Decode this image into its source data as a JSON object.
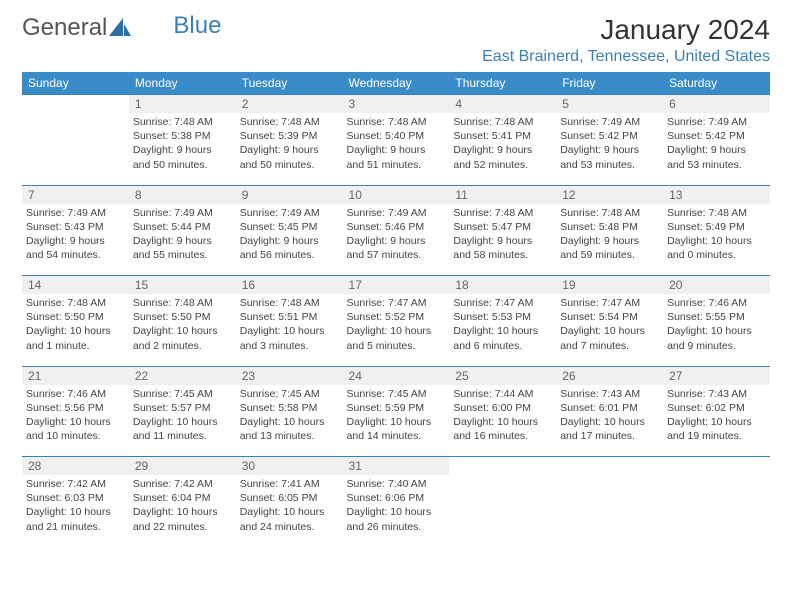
{
  "logo": {
    "text_a": "General",
    "text_b": "Blue"
  },
  "title": "January 2024",
  "location": "East Brainerd, Tennessee, United States",
  "colors": {
    "header_bg": "#3a8cc9",
    "header_text": "#ffffff",
    "rule": "#3a7fb6",
    "daynum_bg": "#eef0f1",
    "daynum_text": "#666666",
    "body_text": "#444444",
    "accent": "#3a7fb6"
  },
  "weekdays": [
    "Sunday",
    "Monday",
    "Tuesday",
    "Wednesday",
    "Thursday",
    "Friday",
    "Saturday"
  ],
  "weeks": [
    {
      "nums": [
        "",
        "1",
        "2",
        "3",
        "4",
        "5",
        "6"
      ],
      "cells": [
        "",
        "Sunrise: 7:48 AM\nSunset: 5:38 PM\nDaylight: 9 hours and 50 minutes.",
        "Sunrise: 7:48 AM\nSunset: 5:39 PM\nDaylight: 9 hours and 50 minutes.",
        "Sunrise: 7:48 AM\nSunset: 5:40 PM\nDaylight: 9 hours and 51 minutes.",
        "Sunrise: 7:48 AM\nSunset: 5:41 PM\nDaylight: 9 hours and 52 minutes.",
        "Sunrise: 7:49 AM\nSunset: 5:42 PM\nDaylight: 9 hours and 53 minutes.",
        "Sunrise: 7:49 AM\nSunset: 5:42 PM\nDaylight: 9 hours and 53 minutes."
      ]
    },
    {
      "nums": [
        "7",
        "8",
        "9",
        "10",
        "11",
        "12",
        "13"
      ],
      "cells": [
        "Sunrise: 7:49 AM\nSunset: 5:43 PM\nDaylight: 9 hours and 54 minutes.",
        "Sunrise: 7:49 AM\nSunset: 5:44 PM\nDaylight: 9 hours and 55 minutes.",
        "Sunrise: 7:49 AM\nSunset: 5:45 PM\nDaylight: 9 hours and 56 minutes.",
        "Sunrise: 7:49 AM\nSunset: 5:46 PM\nDaylight: 9 hours and 57 minutes.",
        "Sunrise: 7:48 AM\nSunset: 5:47 PM\nDaylight: 9 hours and 58 minutes.",
        "Sunrise: 7:48 AM\nSunset: 5:48 PM\nDaylight: 9 hours and 59 minutes.",
        "Sunrise: 7:48 AM\nSunset: 5:49 PM\nDaylight: 10 hours and 0 minutes."
      ]
    },
    {
      "nums": [
        "14",
        "15",
        "16",
        "17",
        "18",
        "19",
        "20"
      ],
      "cells": [
        "Sunrise: 7:48 AM\nSunset: 5:50 PM\nDaylight: 10 hours and 1 minute.",
        "Sunrise: 7:48 AM\nSunset: 5:50 PM\nDaylight: 10 hours and 2 minutes.",
        "Sunrise: 7:48 AM\nSunset: 5:51 PM\nDaylight: 10 hours and 3 minutes.",
        "Sunrise: 7:47 AM\nSunset: 5:52 PM\nDaylight: 10 hours and 5 minutes.",
        "Sunrise: 7:47 AM\nSunset: 5:53 PM\nDaylight: 10 hours and 6 minutes.",
        "Sunrise: 7:47 AM\nSunset: 5:54 PM\nDaylight: 10 hours and 7 minutes.",
        "Sunrise: 7:46 AM\nSunset: 5:55 PM\nDaylight: 10 hours and 9 minutes."
      ]
    },
    {
      "nums": [
        "21",
        "22",
        "23",
        "24",
        "25",
        "26",
        "27"
      ],
      "cells": [
        "Sunrise: 7:46 AM\nSunset: 5:56 PM\nDaylight: 10 hours and 10 minutes.",
        "Sunrise: 7:45 AM\nSunset: 5:57 PM\nDaylight: 10 hours and 11 minutes.",
        "Sunrise: 7:45 AM\nSunset: 5:58 PM\nDaylight: 10 hours and 13 minutes.",
        "Sunrise: 7:45 AM\nSunset: 5:59 PM\nDaylight: 10 hours and 14 minutes.",
        "Sunrise: 7:44 AM\nSunset: 6:00 PM\nDaylight: 10 hours and 16 minutes.",
        "Sunrise: 7:43 AM\nSunset: 6:01 PM\nDaylight: 10 hours and 17 minutes.",
        "Sunrise: 7:43 AM\nSunset: 6:02 PM\nDaylight: 10 hours and 19 minutes."
      ]
    },
    {
      "nums": [
        "28",
        "29",
        "30",
        "31",
        "",
        "",
        ""
      ],
      "cells": [
        "Sunrise: 7:42 AM\nSunset: 6:03 PM\nDaylight: 10 hours and 21 minutes.",
        "Sunrise: 7:42 AM\nSunset: 6:04 PM\nDaylight: 10 hours and 22 minutes.",
        "Sunrise: 7:41 AM\nSunset: 6:05 PM\nDaylight: 10 hours and 24 minutes.",
        "Sunrise: 7:40 AM\nSunset: 6:06 PM\nDaylight: 10 hours and 26 minutes.",
        "",
        "",
        ""
      ]
    }
  ]
}
